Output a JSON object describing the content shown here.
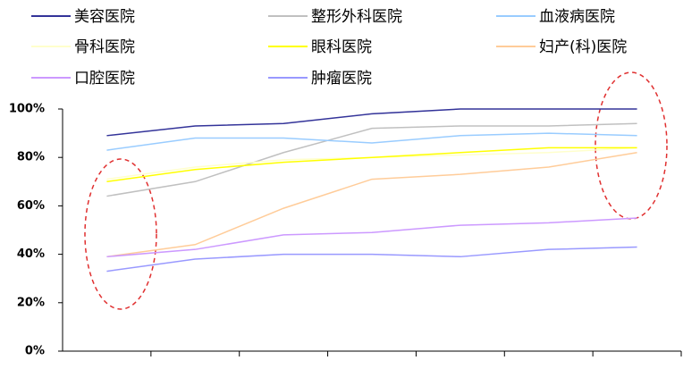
{
  "chart_data": {
    "type": "line",
    "categories": [
      null,
      null,
      null,
      null,
      null,
      null,
      null
    ],
    "series": [
      {
        "name": "美容医院",
        "color": "#333399",
        "values": [
          89,
          93,
          94,
          98,
          100,
          100,
          100
        ]
      },
      {
        "name": "整形外科医院",
        "color": "#c0c0c0",
        "values": [
          64,
          70,
          82,
          92,
          93,
          93,
          94
        ]
      },
      {
        "name": "血液病医院",
        "color": "#99ccff",
        "values": [
          83,
          88,
          88,
          86,
          89,
          90,
          89
        ]
      },
      {
        "name": "骨科医院",
        "color": "#ffffcc",
        "values": [
          71,
          76,
          79,
          80,
          81,
          82,
          84
        ]
      },
      {
        "name": "眼科医院",
        "color": "#ffff00",
        "values": [
          70,
          75,
          78,
          80,
          82,
          84,
          84
        ]
      },
      {
        "name": "妇产(科)医院",
        "color": "#ffcc99",
        "values": [
          39,
          44,
          59,
          71,
          73,
          76,
          82
        ]
      },
      {
        "name": "口腔医院",
        "color": "#cc99ff",
        "values": [
          39,
          42,
          48,
          49,
          52,
          53,
          55
        ]
      },
      {
        "name": "肿瘤医院",
        "color": "#9999ff",
        "values": [
          33,
          38,
          40,
          40,
          39,
          42,
          43
        ]
      }
    ],
    "ylim": [
      0,
      100
    ],
    "yticks": [
      {
        "value": 0,
        "label": "0%"
      },
      {
        "value": 20,
        "label": "20%"
      },
      {
        "value": 40,
        "label": "40%"
      },
      {
        "value": 60,
        "label": "60%"
      },
      {
        "value": 80,
        "label": "80%"
      },
      {
        "value": 100,
        "label": "100%"
      }
    ],
    "grid": false,
    "legend": "top"
  }
}
